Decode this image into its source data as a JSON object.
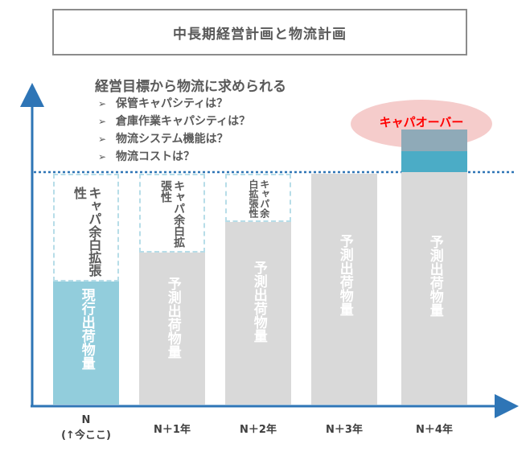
{
  "title": "中長期経営計画と物流計画",
  "requirements": {
    "heading": "経営目標から物流に求められる",
    "items": [
      "保管キャパシティは？",
      "倉庫作業キャパシティは？",
      "物流システム機能は？",
      "物流コストは？"
    ]
  },
  "bars": [
    {
      "label": "現行出荷物量",
      "slack": "キャパ余白拡張性"
    },
    {
      "label": "予測出荷物量",
      "slack": "キャパ余白拡張性"
    },
    {
      "label": "予測出荷物量",
      "slack": "キャパ余白拡張性"
    },
    {
      "label": "予測出荷物量"
    },
    {
      "label": "予測出荷物量"
    }
  ],
  "overflow_label": "キャパオーバー",
  "xaxis": {
    "now_line1": "N",
    "now_line2": "(↑今ここ)",
    "labels": [
      "N＋1年",
      "N＋2年",
      "N＋3年",
      "N＋4年"
    ]
  },
  "colors": {
    "axis": "#2e75b6",
    "current_bar": "#92cddc",
    "forecast_bar": "#d9d9d9",
    "slack_border": "#b7dde8",
    "overflow": "#4bacc6",
    "overflow_text": "#ff0000",
    "ellipse": "#f4c7c5"
  }
}
